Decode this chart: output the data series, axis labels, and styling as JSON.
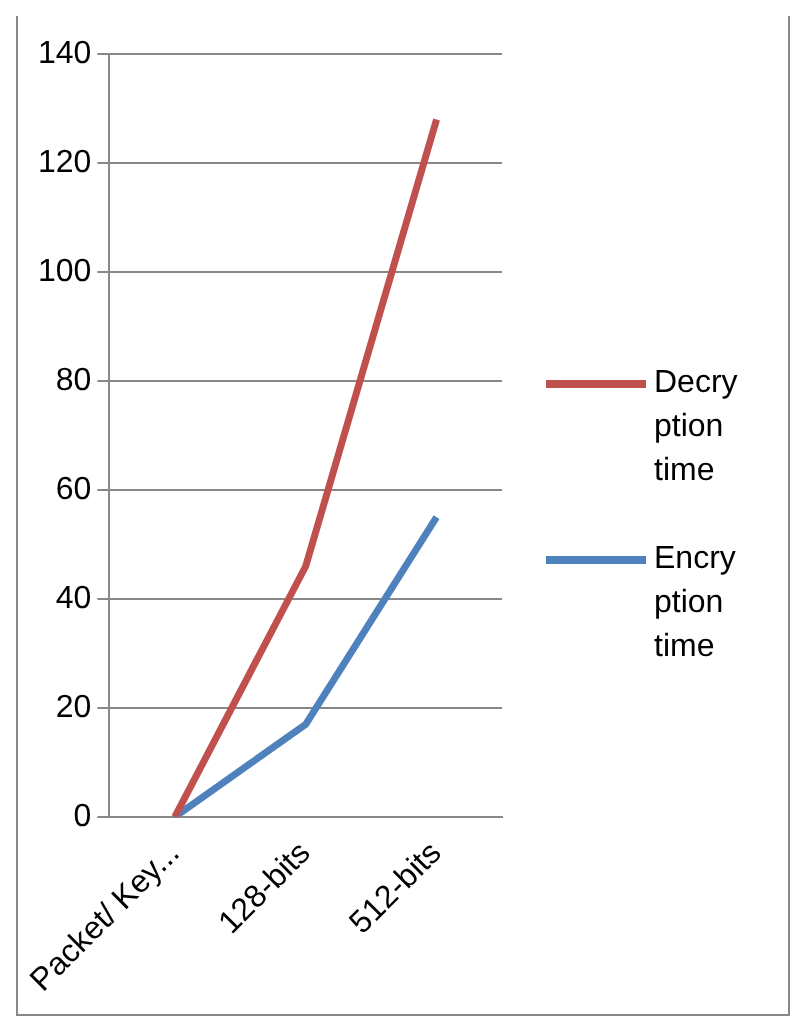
{
  "chart_data": {
    "type": "line",
    "categories": [
      "Packet/ Key...",
      "128-bits",
      "512-bits"
    ],
    "series": [
      {
        "name": "Decryption time",
        "color": "#c0504d",
        "values": [
          0,
          46,
          128
        ]
      },
      {
        "name": "Encryption time",
        "color": "#4f81bd",
        "values": [
          0,
          17,
          55
        ]
      }
    ],
    "ylim": [
      0,
      140
    ],
    "yticks": [
      0,
      20,
      40,
      60,
      80,
      100,
      120,
      140
    ],
    "grid": "y",
    "legend": "right",
    "marker": "none"
  }
}
